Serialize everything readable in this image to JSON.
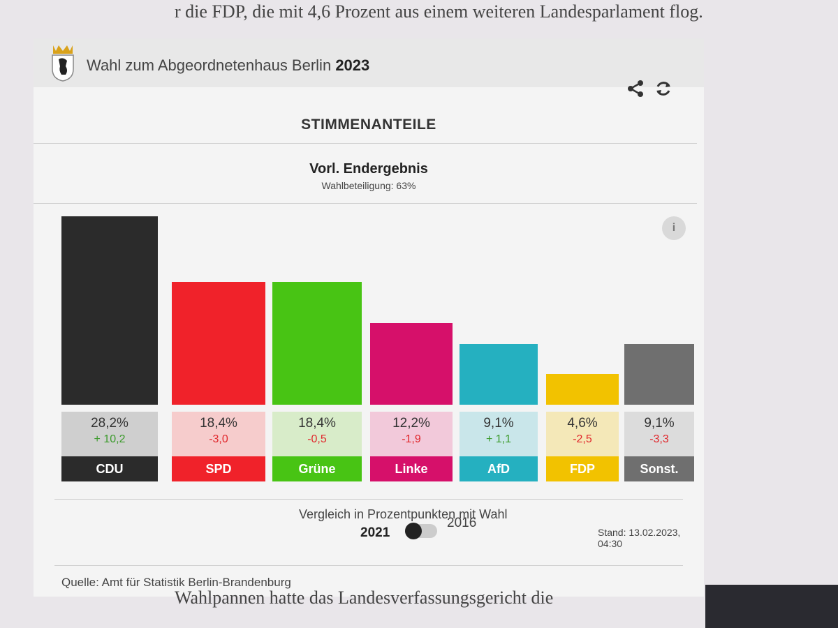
{
  "article": {
    "top_line": "r die FDP, die mit 4,6 Prozent aus einem weiteren Landesparlament flog.",
    "bottom_line": "Wahlpannen hatte das Landesverfassungsgericht die"
  },
  "header": {
    "title_prefix": "Wahl zum Abgeordnetenhaus Berlin",
    "title_year": "2023",
    "share_icon": "share-icon",
    "refresh_icon": "refresh-icon"
  },
  "section_title": "STIMMENANTEILE",
  "result_title": "Vorl. Endergebnis",
  "turnout": "Wahlbeteiligung: 63%",
  "info_label": "i",
  "chart_data": {
    "type": "bar",
    "categories": [
      "CDU",
      "SPD",
      "Grüne",
      "Linke",
      "AfD",
      "FDP",
      "Sonst."
    ],
    "values": [
      28.2,
      18.4,
      18.4,
      12.2,
      9.1,
      4.6,
      9.1
    ],
    "value_labels": [
      "28,2%",
      "18,4%",
      "18,4%",
      "12,2%",
      "9,1%",
      "4,6%",
      "9,1%"
    ],
    "diff_labels": [
      "+ 10,2",
      "-3,0",
      "-0,5",
      "-1,9",
      "+ 1,1",
      "-2,5",
      "-3,3"
    ],
    "colors": [
      "#2b2b2b",
      "#f0222a",
      "#48c414",
      "#d6106a",
      "#25b0c0",
      "#f2c200",
      "#6f6f6f"
    ],
    "light_colors": [
      "#cfcfcf",
      "#f6cccc",
      "#d8ecc9",
      "#f2c9da",
      "#c9e6ea",
      "#f4e8b8",
      "#dcdcdc"
    ],
    "diff_colors": [
      "#3a9a2a",
      "#e0262b",
      "#e0262b",
      "#e0262b",
      "#3a9a2a",
      "#e0262b",
      "#e0262b"
    ],
    "ylim": [
      0,
      28.2
    ]
  },
  "comparison": {
    "text": "Vergleich in Prozentpunkten mit Wahl",
    "year_selected": "2021",
    "year_other": "2016"
  },
  "stand": "Stand: 13.02.2023, 04:30",
  "source": "Quelle: Amt für Statistik Berlin-Brandenburg"
}
